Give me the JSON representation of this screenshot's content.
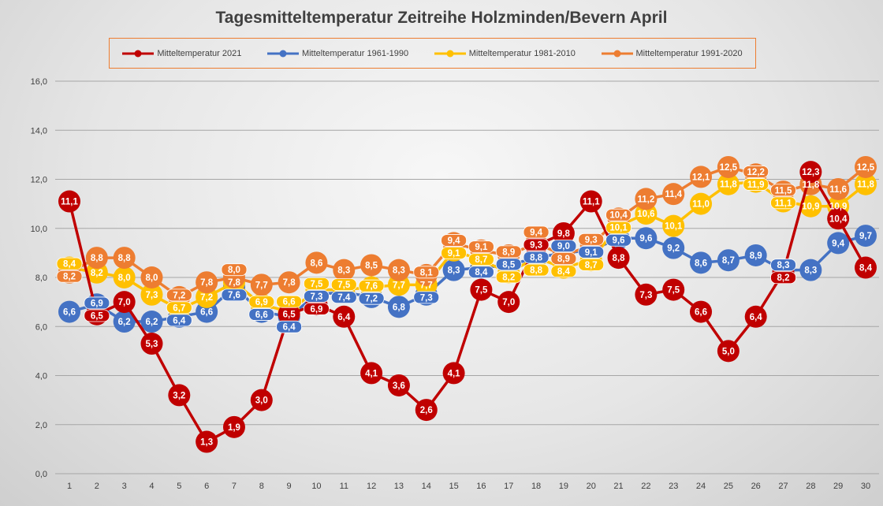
{
  "chart_data": {
    "type": "line",
    "title": "Tagesmitteltemperatur Zeitreihe Holzminden/Bevern April",
    "xlabel": "",
    "ylabel": "",
    "ylim": [
      0,
      16
    ],
    "yticks": [
      "0,0",
      "2,0",
      "4,0",
      "6,0",
      "8,0",
      "10,0",
      "12,0",
      "14,0",
      "16,0"
    ],
    "x": [
      1,
      2,
      3,
      4,
      5,
      6,
      7,
      8,
      9,
      10,
      11,
      12,
      13,
      14,
      15,
      16,
      17,
      18,
      19,
      20,
      21,
      22,
      23,
      24,
      25,
      26,
      27,
      28,
      29,
      30
    ],
    "grid": true,
    "legend_position": "top",
    "series": [
      {
        "name": "Mitteltemperatur 1961-1990",
        "color": "#4472c4",
        "values": [
          6.6,
          6.9,
          6.2,
          6.2,
          6.4,
          6.6,
          7.6,
          6.6,
          6.4,
          7.3,
          7.4,
          7.2,
          6.8,
          7.3,
          8.3,
          8.4,
          8.5,
          8.8,
          9.0,
          9.1,
          9.6,
          9.6,
          9.2,
          8.6,
          8.7,
          8.9,
          8.3,
          8.3,
          9.4,
          9.7
        ]
      },
      {
        "name": "Mitteltemperatur 1981-2010",
        "color": "#ffc000",
        "values": [
          8.4,
          8.2,
          8.0,
          7.3,
          6.7,
          7.2,
          7.8,
          6.9,
          6.6,
          7.5,
          7.5,
          7.6,
          7.7,
          7.7,
          9.1,
          8.7,
          8.2,
          8.8,
          8.4,
          8.7,
          10.1,
          10.6,
          10.1,
          11.0,
          11.8,
          11.9,
          11.1,
          10.9,
          10.9,
          11.8
        ]
      },
      {
        "name": "Mitteltemperatur 1991-2020",
        "color": "#ed7d31",
        "values": [
          8.2,
          8.8,
          8.8,
          8.0,
          7.2,
          7.8,
          8.0,
          7.7,
          7.8,
          8.6,
          8.3,
          8.5,
          8.3,
          8.1,
          9.4,
          9.1,
          8.9,
          9.4,
          8.9,
          9.3,
          10.4,
          11.2,
          11.4,
          12.1,
          12.5,
          12.2,
          11.5,
          11.8,
          11.6,
          12.5
        ]
      },
      {
        "name": "Mitteltemperatur 2021",
        "color": "#c00000",
        "values": [
          11.1,
          6.5,
          7.0,
          5.3,
          3.2,
          1.3,
          1.9,
          3.0,
          6.5,
          6.9,
          6.4,
          4.1,
          3.6,
          2.6,
          4.1,
          7.5,
          7.0,
          9.3,
          9.8,
          11.1,
          8.8,
          7.3,
          7.5,
          6.6,
          5.0,
          6.4,
          8.2,
          12.3,
          10.4,
          8.4
        ]
      }
    ],
    "legend_order": [
      3,
      0,
      1,
      2
    ]
  }
}
